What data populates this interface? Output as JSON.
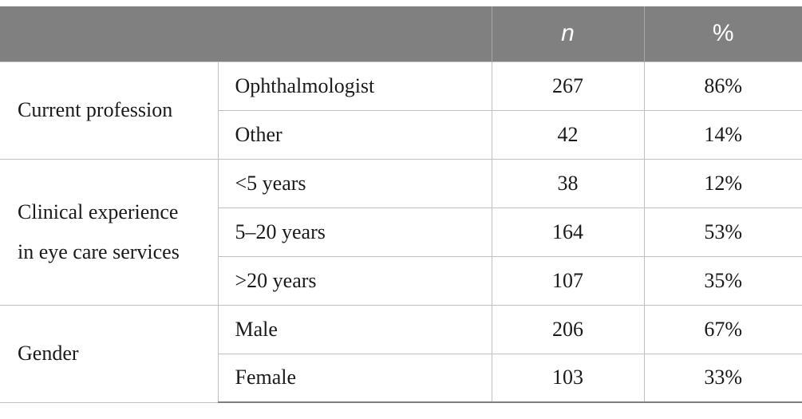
{
  "header": {
    "group": "",
    "subcategory": "",
    "n": "n",
    "percent": "%"
  },
  "groups": [
    {
      "label": "Current profession",
      "rows": [
        {
          "category": "Ophthalmologist",
          "n": "267",
          "percent": "86%"
        },
        {
          "category": "Other",
          "n": "42",
          "percent": "14%"
        }
      ]
    },
    {
      "label_line1": "Clinical experience",
      "label_line2": "in eye care services",
      "rows": [
        {
          "category": "<5 years",
          "n": "38",
          "percent": "12%"
        },
        {
          "category": "5–20 years",
          "n": "164",
          "percent": "53%"
        },
        {
          "category": ">20 years",
          "n": "107",
          "percent": "35%"
        }
      ]
    },
    {
      "label": "Gender",
      "rows": [
        {
          "category": "Male",
          "n": "206",
          "percent": "67%"
        },
        {
          "category": "Female",
          "n": "103",
          "percent": "33%"
        }
      ]
    }
  ]
}
